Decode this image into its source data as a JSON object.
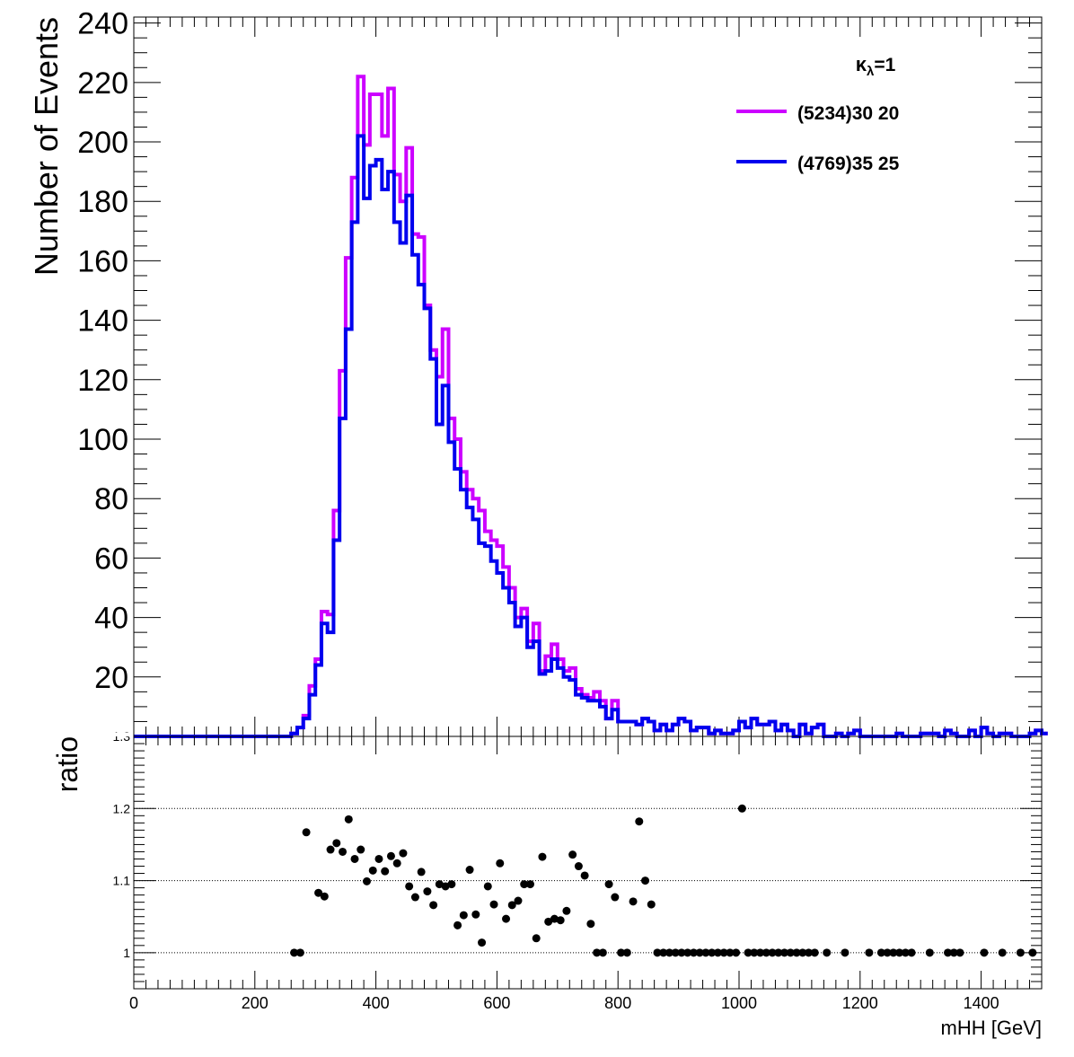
{
  "chart_data": [
    {
      "type": "line",
      "subtype": "step-histogram",
      "ylabel": "Number of Events",
      "xlim": [
        0,
        1500
      ],
      "ylim": [
        0,
        242
      ],
      "y_ticks": [
        "20",
        "40",
        "60",
        "80",
        "100",
        "120",
        "140",
        "160",
        "180",
        "200",
        "220",
        "240"
      ],
      "legend_header": "κ",
      "legend_header_sub": "λ",
      "legend_header_suffix": "=1",
      "legend_placement": "top-right",
      "bin_width": 10,
      "series": [
        {
          "name": "(5234)30 20",
          "color": "#cc00ff",
          "values": [
            0,
            0,
            0,
            0,
            0,
            0,
            0,
            0,
            0,
            0,
            0,
            0,
            0,
            0,
            0,
            0,
            0,
            0,
            0,
            0,
            0,
            0,
            0,
            0,
            0,
            0,
            1,
            3,
            7,
            17,
            26,
            42,
            41,
            76,
            123,
            161,
            188,
            222,
            199,
            216,
            216,
            202,
            218,
            189,
            180,
            198,
            169,
            168,
            145,
            130,
            121,
            137,
            107,
            100,
            89,
            83,
            80,
            76,
            69,
            66,
            64,
            57,
            50,
            40,
            43,
            32,
            38,
            22,
            27,
            31,
            26,
            22,
            23,
            16,
            14,
            13,
            15,
            12,
            6,
            12,
            5,
            5,
            5,
            4,
            6,
            5,
            2,
            4,
            2,
            4,
            6,
            5,
            2,
            3,
            3,
            1,
            2,
            1,
            1,
            2,
            5,
            3,
            6,
            4,
            4,
            5,
            2,
            4,
            2,
            0,
            4,
            1,
            3,
            4,
            0,
            0,
            1,
            0,
            1,
            2,
            0,
            0,
            0,
            0,
            0,
            0,
            1,
            0,
            0,
            0,
            1,
            1,
            1,
            0,
            2,
            1,
            0,
            0,
            2,
            0,
            3,
            1,
            0,
            1,
            1,
            0,
            0,
            0,
            1,
            2,
            1,
            1
          ]
        },
        {
          "name": "(4769)35 25",
          "color": "#0000ee",
          "values": [
            0,
            0,
            0,
            0,
            0,
            0,
            0,
            0,
            0,
            0,
            0,
            0,
            0,
            0,
            0,
            0,
            0,
            0,
            0,
            0,
            0,
            0,
            0,
            0,
            0,
            0,
            1,
            3,
            6,
            14,
            24,
            38,
            35,
            66,
            107,
            137,
            173,
            202,
            181,
            192,
            194,
            184,
            190,
            173,
            166,
            182,
            162,
            152,
            144,
            127,
            105,
            118,
            99,
            90,
            83,
            77,
            73,
            65,
            64,
            59,
            55,
            50,
            45,
            37,
            40,
            30,
            32,
            21,
            22,
            26,
            23,
            20,
            19,
            14,
            13,
            12,
            12,
            10,
            6,
            9,
            5,
            5,
            5,
            4,
            6,
            5,
            2,
            4,
            2,
            4,
            6,
            5,
            2,
            3,
            3,
            1,
            2,
            1,
            1,
            2,
            5,
            3,
            6,
            4,
            4,
            5,
            2,
            4,
            2,
            0,
            4,
            1,
            3,
            4,
            0,
            0,
            1,
            0,
            1,
            2,
            0,
            0,
            0,
            0,
            0,
            0,
            1,
            0,
            0,
            0,
            1,
            1,
            1,
            0,
            2,
            1,
            0,
            0,
            2,
            0,
            3,
            1,
            0,
            1,
            1,
            0,
            0,
            0,
            1,
            2,
            1,
            1
          ]
        }
      ]
    },
    {
      "type": "scatter",
      "ylabel": "ratio",
      "xlabel": "mHH [GeV]",
      "xlim": [
        0,
        1500
      ],
      "ylim": [
        0.95,
        1.3
      ],
      "grid_y": [
        1,
        1.1,
        1.2
      ],
      "y_ticks": [
        "1",
        "1.1",
        "1.2",
        "1.3"
      ],
      "x_ticks": [
        "0",
        "200",
        "400",
        "600",
        "800",
        "1000",
        "1200",
        "1400"
      ],
      "marker_color": "#000000",
      "points": [
        [
          265,
          1.0
        ],
        [
          275,
          1.0
        ],
        [
          285,
          1.167
        ],
        [
          305,
          1.083
        ],
        [
          315,
          1.078
        ],
        [
          325,
          1.143
        ],
        [
          335,
          1.152
        ],
        [
          345,
          1.14
        ],
        [
          355,
          1.185
        ],
        [
          365,
          1.13
        ],
        [
          375,
          1.143
        ],
        [
          385,
          1.099
        ],
        [
          395,
          1.114
        ],
        [
          405,
          1.13
        ],
        [
          415,
          1.113
        ],
        [
          425,
          1.134
        ],
        [
          435,
          1.124
        ],
        [
          445,
          1.138
        ],
        [
          455,
          1.092
        ],
        [
          465,
          1.077
        ],
        [
          475,
          1.112
        ],
        [
          485,
          1.085
        ],
        [
          495,
          1.066
        ],
        [
          505,
          1.095
        ],
        [
          515,
          1.092
        ],
        [
          525,
          1.095
        ],
        [
          535,
          1.038
        ],
        [
          545,
          1.052
        ],
        [
          555,
          1.115
        ],
        [
          565,
          1.053
        ],
        [
          575,
          1.014
        ],
        [
          585,
          1.092
        ],
        [
          595,
          1.067
        ],
        [
          605,
          1.124
        ],
        [
          615,
          1.047
        ],
        [
          625,
          1.066
        ],
        [
          635,
          1.072
        ],
        [
          645,
          1.095
        ],
        [
          655,
          1.095
        ],
        [
          665,
          1.02
        ],
        [
          675,
          1.133
        ],
        [
          685,
          1.043
        ],
        [
          695,
          1.047
        ],
        [
          705,
          1.045
        ],
        [
          715,
          1.058
        ],
        [
          725,
          1.136
        ],
        [
          735,
          1.12
        ],
        [
          745,
          1.107
        ],
        [
          755,
          1.04
        ],
        [
          765,
          1.0
        ],
        [
          775,
          1.0
        ],
        [
          785,
          1.095
        ],
        [
          795,
          1.077
        ],
        [
          805,
          1.0
        ],
        [
          815,
          1.0
        ],
        [
          825,
          1.071
        ],
        [
          835,
          1.182
        ],
        [
          845,
          1.1
        ],
        [
          855,
          1.067
        ],
        [
          865,
          1.0
        ],
        [
          875,
          1.0
        ],
        [
          885,
          1.0
        ],
        [
          895,
          1.0
        ],
        [
          905,
          1.0
        ],
        [
          915,
          1.0
        ],
        [
          925,
          1.0
        ],
        [
          935,
          1.0
        ],
        [
          945,
          1.0
        ],
        [
          955,
          1.0
        ],
        [
          965,
          1.0
        ],
        [
          975,
          1.0
        ],
        [
          985,
          1.0
        ],
        [
          995,
          1.0
        ],
        [
          1005,
          1.2
        ],
        [
          1015,
          1.0
        ],
        [
          1025,
          1.0
        ],
        [
          1035,
          1.0
        ],
        [
          1045,
          1.0
        ],
        [
          1055,
          1.0
        ],
        [
          1065,
          1.0
        ],
        [
          1075,
          1.0
        ],
        [
          1085,
          1.0
        ],
        [
          1095,
          1.0
        ],
        [
          1105,
          1.0
        ],
        [
          1115,
          1.0
        ],
        [
          1125,
          1.0
        ],
        [
          1145,
          1.0
        ],
        [
          1175,
          1.0
        ],
        [
          1215,
          1.0
        ],
        [
          1235,
          1.0
        ],
        [
          1245,
          1.0
        ],
        [
          1255,
          1.0
        ],
        [
          1265,
          1.0
        ],
        [
          1275,
          1.0
        ],
        [
          1285,
          1.0
        ],
        [
          1315,
          1.0
        ],
        [
          1345,
          1.0
        ],
        [
          1355,
          1.0
        ],
        [
          1365,
          1.0
        ],
        [
          1405,
          1.0
        ],
        [
          1435,
          1.0
        ],
        [
          1465,
          1.0
        ],
        [
          1485,
          1.0
        ]
      ]
    }
  ]
}
